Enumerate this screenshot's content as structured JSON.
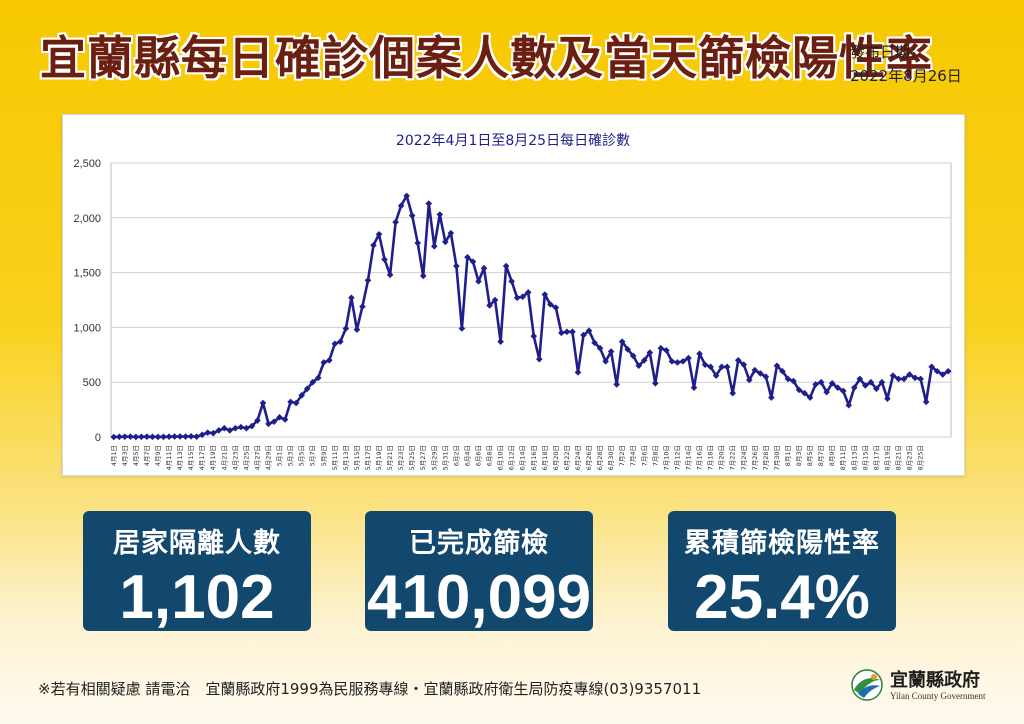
{
  "header": {
    "title": "宜蘭縣每日確診個案人數及當天篩檢陽性率",
    "date_label": "發布日期：",
    "date_value": "2022年8月26日"
  },
  "colors": {
    "line": "#1f1f8c",
    "stat_bg": "#12476e",
    "title": "#6b1f10"
  },
  "chart_data": {
    "type": "line",
    "title": "2022年4月1日至8月25日每日確診數",
    "xlabel": "",
    "ylabel": "",
    "ylim": [
      0,
      2500
    ],
    "yticks": [
      "0",
      "500",
      "1,000",
      "1,500",
      "2,000",
      "2,500"
    ],
    "grid": true,
    "legend": "none",
    "tick_labels": [
      "4月1日",
      "4月3日",
      "4月5日",
      "4月7日",
      "4月9日",
      "4月11日",
      "4月13日",
      "4月15日",
      "4月17日",
      "4月19日",
      "4月21日",
      "4月23日",
      "4月25日",
      "4月27日",
      "4月29日",
      "5月1日",
      "5月3日",
      "5月5日",
      "5月7日",
      "5月9日",
      "5月11日",
      "5月13日",
      "5月15日",
      "5月17日",
      "5月19日",
      "5月21日",
      "5月23日",
      "5月25日",
      "5月27日",
      "5月29日",
      "5月31日",
      "6月2日",
      "6月4日",
      "6月6日",
      "6月8日",
      "6月10日",
      "6月12日",
      "6月14日",
      "6月16日",
      "6月18日",
      "6月20日",
      "6月22日",
      "6月24日",
      "6月26日",
      "6月28日",
      "6月30日",
      "7月2日",
      "7月4日",
      "7月6日",
      "7月8日",
      "7月10日",
      "7月12日",
      "7月14日",
      "7月16日",
      "7月18日",
      "7月20日",
      "7月22日",
      "7月24日",
      "7月26日",
      "7月28日",
      "7月30日",
      "8月1日",
      "8月3日",
      "8月5日",
      "8月7日",
      "8月9日",
      "8月11日",
      "8月13日",
      "8月15日",
      "8月17日",
      "8月19日",
      "8月21日",
      "8月23日",
      "8月25日"
    ],
    "series": [
      {
        "values": [
          0,
          2,
          3,
          3,
          1,
          2,
          3,
          2,
          1,
          2,
          3,
          4,
          5,
          4,
          6,
          3,
          20,
          40,
          35,
          60,
          80,
          60,
          80,
          90,
          80,
          100,
          150,
          310,
          120,
          140,
          180,
          160,
          320,
          310,
          380,
          440,
          500,
          540,
          680,
          700,
          850,
          870,
          990,
          1270,
          980,
          1190,
          1430,
          1750,
          1850,
          1620,
          1480,
          1960,
          2110,
          2200,
          2020,
          1770,
          1470,
          2130,
          1740,
          2030,
          1780,
          1860,
          1560,
          990,
          1640,
          1600,
          1420,
          1540,
          1200,
          1250,
          870,
          1560,
          1420,
          1270,
          1280,
          1320,
          920,
          710,
          1300,
          1210,
          1180,
          950,
          960,
          960,
          590,
          930,
          970,
          860,
          810,
          690,
          780,
          480,
          870,
          800,
          740,
          650,
          700,
          770,
          490,
          810,
          790,
          690,
          680,
          690,
          720,
          450,
          760,
          660,
          640,
          560,
          640,
          640,
          400,
          700,
          660,
          520,
          610,
          580,
          550,
          360,
          650,
          600,
          530,
          510,
          430,
          400,
          360,
          480,
          500,
          410,
          490,
          450,
          420,
          290,
          450,
          530,
          470,
          500,
          440,
          500,
          350,
          560,
          530,
          530,
          570,
          540,
          530,
          320,
          640,
          600,
          570,
          600
        ]
      }
    ]
  },
  "stats": [
    {
      "label": "居家隔離人數",
      "value": "1,102"
    },
    {
      "label": "已完成篩檢",
      "value": "410,099"
    },
    {
      "label": "累積篩檢陽性率",
      "value": "25.4%"
    }
  ],
  "footer": {
    "text": "※若有相關疑慮 請電洽　宜蘭縣政府1999為民服務專線・宜蘭縣政府衛生局防疫專線(03)9357011"
  },
  "logo": {
    "name": "宜蘭縣政府",
    "english": "Yilan County Government",
    "icon": "yilan-county-emblem"
  }
}
